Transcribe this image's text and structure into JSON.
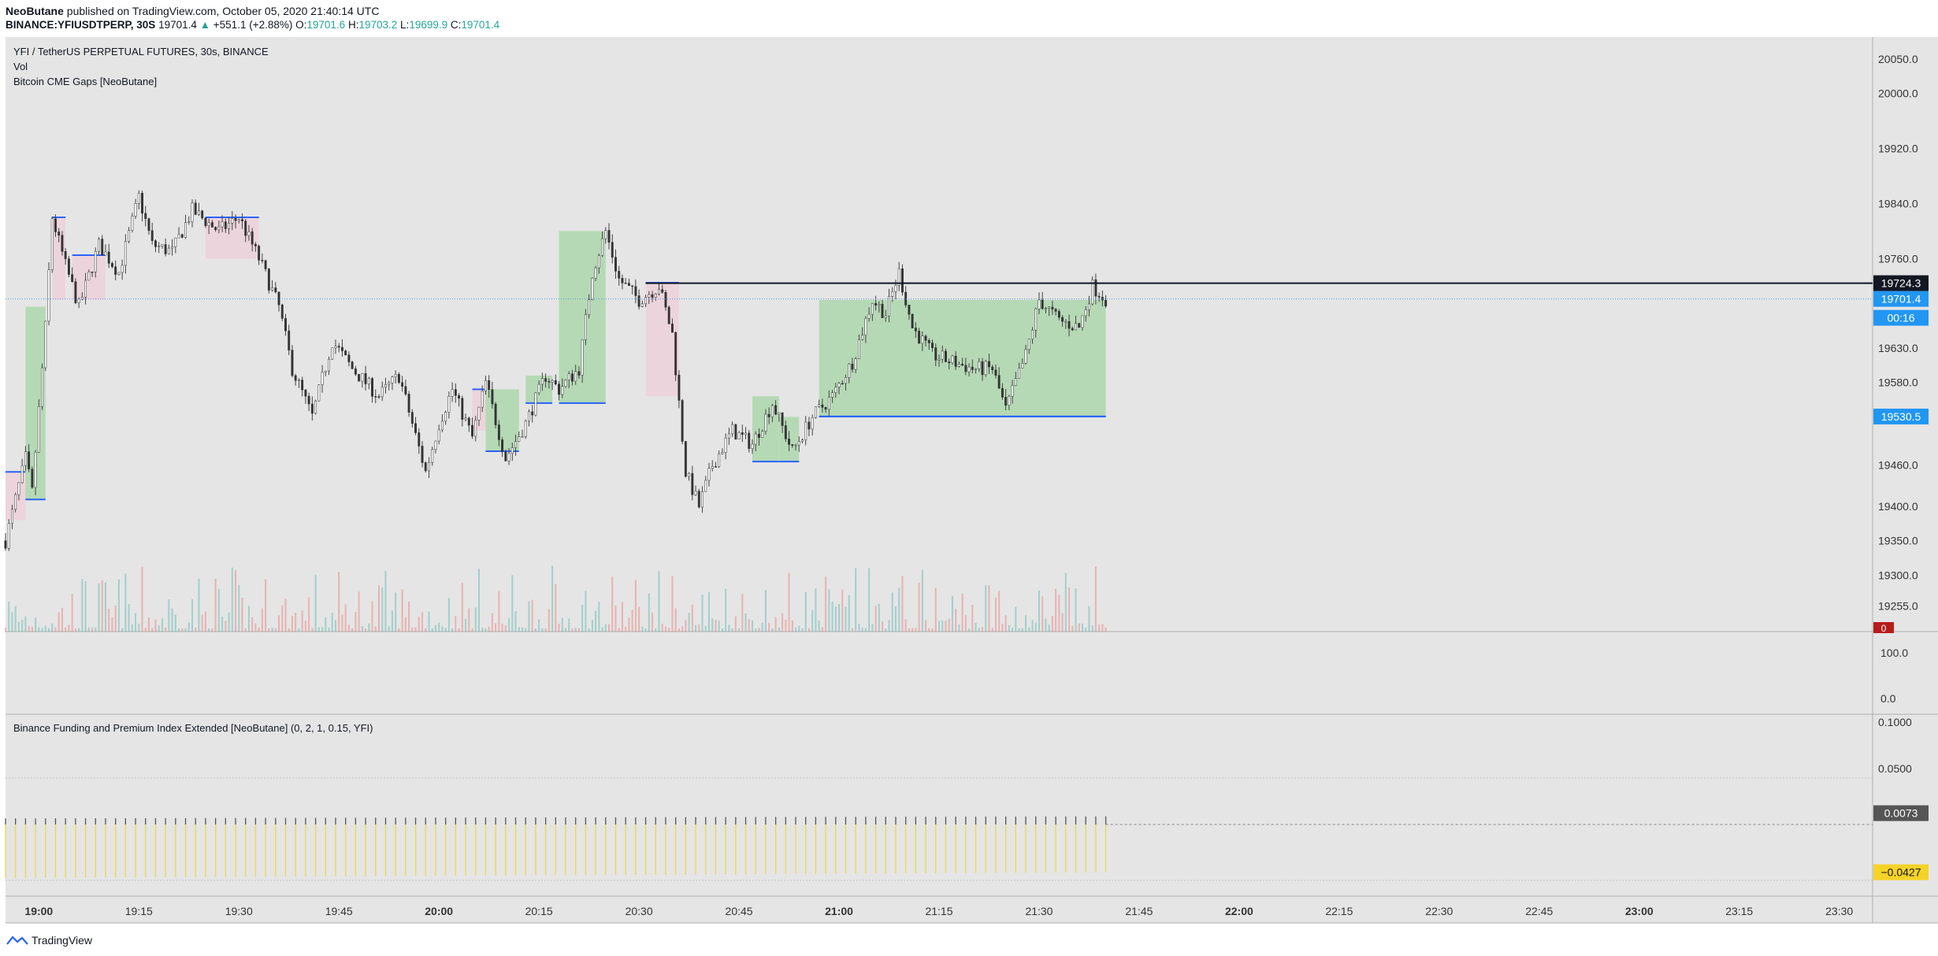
{
  "header": {
    "author": "NeoButane",
    "published_text": "published on TradingView.com, October 05, 2020 21:40:14 UTC",
    "symbol": "BINANCE:YFIUSDTPERP, 30S",
    "last": "19701.4",
    "change_arrow": "▲",
    "change": "+551.1 (+2.88%)",
    "o_label": "O:",
    "o": "19701.6",
    "h_label": "H:",
    "h": "19703.2",
    "l_label": "L:",
    "l": "19699.9",
    "c_label": "C:",
    "c": "19701.4"
  },
  "legend": {
    "title": "YFI / TetherUS PERPETUAL FUTURES, 30s, BINANCE",
    "vol": "Vol",
    "indicator": "Bitcoin CME Gaps [NeoButane]",
    "funding": "Binance Funding and Premium Index Extended [NeoButane] (0, 2, 1, 0.15, YFI)"
  },
  "price_axis": {
    "ticks": [
      "20050.0",
      "20000.0",
      "19920.0",
      "19840.0",
      "19760.0",
      "19630.0",
      "19580.0",
      "19460.0",
      "19400.0",
      "19350.0",
      "19300.0",
      "19255.0"
    ],
    "labels": {
      "hline": "19724.3",
      "last": "19701.4",
      "countdown": "00:16",
      "gap_level": "19530.5",
      "vol_zero": "0"
    }
  },
  "vol_axis": {
    "ticks": [
      "100.0",
      "0.0"
    ]
  },
  "funding_axis": {
    "ticks": [
      "0.1000",
      "0.0500"
    ],
    "labels": {
      "funding": "0.0073",
      "premium": "−0.0427"
    }
  },
  "time_axis": {
    "ticks": [
      "19:00",
      "19:15",
      "19:30",
      "19:45",
      "20:00",
      "20:15",
      "20:30",
      "20:45",
      "21:00",
      "21:15",
      "21:30",
      "21:45",
      "22:00",
      "22:15",
      "22:30",
      "22:45",
      "23:00",
      "23:15",
      "23:30"
    ],
    "bold": [
      "19:00",
      "20:00",
      "21:00",
      "22:00",
      "23:00"
    ]
  },
  "footer": {
    "brand": "TradingView"
  },
  "colors": {
    "bg": "#e5e5e5",
    "up": "#26a69a",
    "down": "#ef5350",
    "gap_up": "#b2d8b2",
    "gap_down": "#ecd3db",
    "gap_line": "#2962ff",
    "funding_bar": "#ecd94a",
    "premium_bar": "#555555",
    "hline": "#131722"
  },
  "chart_data": {
    "type": "candlestick",
    "title": "YFI / TetherUS PERPETUAL FUTURES, 30s, BINANCE",
    "x_range": [
      "18:55",
      "23:35"
    ],
    "y_range": [
      19218,
      20082
    ],
    "key_levels": {
      "horizontal_line": 19724.3,
      "last_price": 19701.4,
      "cme_gap_level": 19530.5
    },
    "price_path": [
      {
        "t": "18:55",
        "p": 19350
      },
      {
        "t": "18:58",
        "p": 19470
      },
      {
        "t": "18:59",
        "p": 19420
      },
      {
        "t": "19:01",
        "p": 19660
      },
      {
        "t": "19:02",
        "p": 19820
      },
      {
        "t": "19:04",
        "p": 19750
      },
      {
        "t": "19:06",
        "p": 19690
      },
      {
        "t": "19:09",
        "p": 19780
      },
      {
        "t": "19:12",
        "p": 19740
      },
      {
        "t": "19:15",
        "p": 19850
      },
      {
        "t": "19:17",
        "p": 19780
      },
      {
        "t": "19:20",
        "p": 19770
      },
      {
        "t": "19:23",
        "p": 19830
      },
      {
        "t": "19:27",
        "p": 19800
      },
      {
        "t": "19:30",
        "p": 19820
      },
      {
        "t": "19:33",
        "p": 19760
      },
      {
        "t": "19:36",
        "p": 19690
      },
      {
        "t": "19:38",
        "p": 19600
      },
      {
        "t": "19:41",
        "p": 19530
      },
      {
        "t": "19:44",
        "p": 19640
      },
      {
        "t": "19:47",
        "p": 19600
      },
      {
        "t": "19:51",
        "p": 19560
      },
      {
        "t": "19:54",
        "p": 19590
      },
      {
        "t": "19:58",
        "p": 19450
      },
      {
        "t": "20:00",
        "p": 19520
      },
      {
        "t": "20:02",
        "p": 19570
      },
      {
        "t": "20:05",
        "p": 19500
      },
      {
        "t": "20:07",
        "p": 19580
      },
      {
        "t": "20:10",
        "p": 19470
      },
      {
        "t": "20:13",
        "p": 19520
      },
      {
        "t": "20:16",
        "p": 19590
      },
      {
        "t": "20:18",
        "p": 19570
      },
      {
        "t": "20:21",
        "p": 19600
      },
      {
        "t": "20:23",
        "p": 19740
      },
      {
        "t": "20:25",
        "p": 19800
      },
      {
        "t": "20:27",
        "p": 19730
      },
      {
        "t": "20:30",
        "p": 19700
      },
      {
        "t": "20:33",
        "p": 19720
      },
      {
        "t": "20:35",
        "p": 19650
      },
      {
        "t": "20:37",
        "p": 19450
      },
      {
        "t": "20:39",
        "p": 19400
      },
      {
        "t": "20:41",
        "p": 19460
      },
      {
        "t": "20:44",
        "p": 19510
      },
      {
        "t": "20:47",
        "p": 19490
      },
      {
        "t": "20:50",
        "p": 19550
      },
      {
        "t": "20:53",
        "p": 19480
      },
      {
        "t": "20:56",
        "p": 19530
      },
      {
        "t": "20:59",
        "p": 19560
      },
      {
        "t": "21:02",
        "p": 19610
      },
      {
        "t": "21:05",
        "p": 19700
      },
      {
        "t": "21:07",
        "p": 19680
      },
      {
        "t": "21:09",
        "p": 19740
      },
      {
        "t": "21:11",
        "p": 19660
      },
      {
        "t": "21:14",
        "p": 19620
      },
      {
        "t": "21:17",
        "p": 19610
      },
      {
        "t": "21:20",
        "p": 19600
      },
      {
        "t": "21:23",
        "p": 19600
      },
      {
        "t": "21:25",
        "p": 19540
      },
      {
        "t": "21:28",
        "p": 19620
      },
      {
        "t": "21:30",
        "p": 19700
      },
      {
        "t": "21:33",
        "p": 19670
      },
      {
        "t": "21:36",
        "p": 19660
      },
      {
        "t": "21:38",
        "p": 19720
      },
      {
        "t": "21:40",
        "p": 19701.4
      }
    ],
    "cme_gaps": [
      {
        "start": "18:55",
        "end": "18:58",
        "from": 19450,
        "to": 19380,
        "dir": "down"
      },
      {
        "start": "18:58",
        "end": "19:01",
        "from": 19410,
        "to": 19690,
        "dir": "up"
      },
      {
        "start": "19:02",
        "end": "19:04",
        "from": 19820,
        "to": 19700,
        "dir": "down"
      },
      {
        "start": "19:05",
        "end": "19:10",
        "from": 19765,
        "to": 19700,
        "dir": "down"
      },
      {
        "start": "19:25",
        "end": "19:28",
        "from": 19820,
        "to": 19760,
        "dir": "down"
      },
      {
        "start": "19:28",
        "end": "19:33",
        "from": 19820,
        "to": 19760,
        "dir": "down"
      },
      {
        "start": "20:05",
        "end": "20:07",
        "from": 19570,
        "to": 19510,
        "dir": "down"
      },
      {
        "start": "20:07",
        "end": "20:12",
        "from": 19480,
        "to": 19570,
        "dir": "up"
      },
      {
        "start": "20:13",
        "end": "20:17",
        "from": 19550,
        "to": 19590,
        "dir": "up"
      },
      {
        "start": "20:18",
        "end": "20:25",
        "from": 19550,
        "to": 19800,
        "dir": "up"
      },
      {
        "start": "20:31",
        "end": "20:36",
        "from": 19725,
        "to": 19560,
        "dir": "down"
      },
      {
        "start": "20:47",
        "end": "20:51",
        "from": 19465,
        "to": 19560,
        "dir": "up"
      },
      {
        "start": "20:51",
        "end": "20:54",
        "from": 19465,
        "to": 19530,
        "dir": "up"
      },
      {
        "start": "20:57",
        "end": "21:40",
        "from": 19530.5,
        "to": 19700,
        "dir": "up"
      }
    ],
    "volume_range": [
      0,
      100
    ],
    "funding": {
      "y_range": [
        -0.05,
        0.1
      ],
      "funding_value": 0.0073,
      "premium_value": -0.0427,
      "premium_start": -0.048,
      "premium_end": -0.0427
    }
  }
}
